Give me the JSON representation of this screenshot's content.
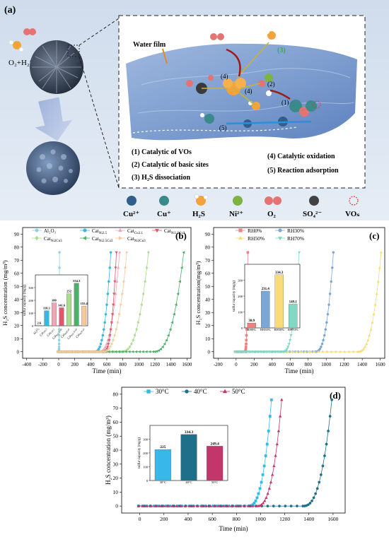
{
  "panel_a": {
    "label": "(a)",
    "water_film": "Water film",
    "gas_label": "O₂+H₂S",
    "step_numbers": [
      "(1)",
      "(2)",
      "(3)",
      "(4)",
      "(4)",
      "(5)"
    ],
    "steps": [
      "(1) Catalytic of VOs",
      "(2) Catalytic of basic sites",
      "(3) H₂S dissociation",
      "(4) Catalytic oxidation",
      "(5) Reaction adsorption"
    ],
    "legend": [
      {
        "label": "Cu²⁺",
        "color": "#2f5f8a"
      },
      {
        "label": "Cu⁺",
        "color": "#3a8a8a"
      },
      {
        "label": "H₂S",
        "color": "#f2a33a"
      },
      {
        "label": "Ni²⁺",
        "color": "#7cb342"
      },
      {
        "label": "O₂",
        "color": "#e57373"
      },
      {
        "label": "SO₄²⁻",
        "color": "#424242"
      },
      {
        "label": "VOₛ",
        "color": "#e53935"
      }
    ]
  },
  "chart_data": [
    {
      "type": "line",
      "panel": "(b)",
      "xlabel": "",
      "ylabel": "H₂S concentration (mg/m³)",
      "xlim": [
        -450,
        1650
      ],
      "ylim": [
        -5,
        95
      ],
      "xticks": [
        -400,
        -200,
        0,
        200,
        400,
        600,
        800,
        1000,
        1200,
        1400,
        1600
      ],
      "yticks": [
        0,
        10,
        20,
        30,
        40,
        50,
        60,
        70,
        80,
        90
      ],
      "legend": "top-left",
      "series": [
        {
          "name": "Al₂O₃",
          "color": "#8fd3e8",
          "marker": "circle",
          "breakthrough": 2,
          "end": 10
        },
        {
          "name": "Cat_Ni2.5",
          "color": "#38b8e0",
          "marker": "circle",
          "breakthrough": 450,
          "end": 650
        },
        {
          "name": "Cat_Cu3.1",
          "color": "#f2a6b8",
          "marker": "triangle",
          "breakthrough": 500,
          "end": 760
        },
        {
          "name": "Cat_Ni1.5Cu3",
          "color": "#e0566b",
          "marker": "triangle-down",
          "breakthrough": 560,
          "end": 720
        },
        {
          "name": "Cat_Ni2Cu3",
          "color": "#a9dc8f",
          "marker": "diamond",
          "breakthrough": 780,
          "end": 1120
        },
        {
          "name": "Cat_Ni2.5Cu3",
          "color": "#4cb06a",
          "marker": "triangle-left",
          "breakthrough": 1180,
          "end": 1560
        },
        {
          "name": "Cat_Ni3Cu3",
          "color": "#f5c99b",
          "marker": "triangle-right",
          "breakthrough": 550,
          "end": 850
        }
      ],
      "inset": {
        "type": "bar",
        "ylabel": "sulfur capacity (mg/g)",
        "categories": [
          "Al₂O₃",
          "Cat_Ni2.5",
          "Cat_Cu3.1",
          "Cat_Ni1.5Cu3",
          "Cat_Ni2Cu3",
          "Cat_Ni2.5Cu3",
          "Cat_Ni3Cu3"
        ],
        "values": [
          2.6,
          118.3,
          180,
          141.6,
          252,
          334.3,
          155.4
        ],
        "colors": [
          "#8fd3e8",
          "#38b8e0",
          "#f2a6b8",
          "#e0566b",
          "#a9dc8f",
          "#4cb06a",
          "#f5c99b"
        ],
        "ylim": [
          0,
          400
        ]
      }
    },
    {
      "type": "line",
      "panel": "(c)",
      "xlabel": "",
      "ylabel": "H₂S concentration(mg/m³)",
      "xlim": [
        -250,
        1650
      ],
      "ylim": [
        -5,
        95
      ],
      "xticks": [
        -200,
        0,
        200,
        400,
        600,
        800,
        1000,
        1200,
        1400,
        1600
      ],
      "yticks": [
        0,
        10,
        20,
        30,
        40,
        50,
        60,
        70,
        80,
        90
      ],
      "legend": "top-left",
      "series": [
        {
          "name": "RH0%",
          "color": "#f08080",
          "marker": "square",
          "breakthrough": 100,
          "end": 130
        },
        {
          "name": "RH30%",
          "color": "#7ba7d7",
          "marker": "circle",
          "breakthrough": 880,
          "end": 1080
        },
        {
          "name": "RH50%",
          "color": "#f7dc78",
          "marker": "triangle",
          "breakthrough": 1350,
          "end": 1610
        },
        {
          "name": "RH70%",
          "color": "#7fd9c3",
          "marker": "triangle-down",
          "breakthrough": 520,
          "end": 700
        }
      ],
      "inset": {
        "type": "bar",
        "ylabel": "sulfur capacity (mg/g)",
        "categories": [
          "RH0%",
          "RH30%",
          "RH50%",
          "RH70%"
        ],
        "values": [
          30.9,
          231.4,
          334.3,
          149.1
        ],
        "colors": [
          "#f08080",
          "#7ba7d7",
          "#f7dc78",
          "#7fd9c3"
        ],
        "ylim": [
          0,
          400
        ]
      }
    },
    {
      "type": "line",
      "panel": "(d)",
      "xlabel": "Time (min)",
      "ylabel": "H₂S concentration (mg/m³)",
      "xlim": [
        -150,
        1700
      ],
      "ylim": [
        -5,
        85
      ],
      "xticks": [
        0,
        200,
        400,
        600,
        800,
        1000,
        1200,
        1400,
        1600
      ],
      "yticks": [
        0,
        10,
        20,
        30,
        40,
        50,
        60,
        70,
        80
      ],
      "legend": "top-left",
      "series": [
        {
          "name": "30°C",
          "color": "#38b8e8",
          "marker": "square",
          "breakthrough": 900,
          "end": 1090
        },
        {
          "name": "40°C",
          "color": "#1f6f8b",
          "marker": "circle",
          "breakthrough": 1350,
          "end": 1590
        },
        {
          "name": "50°C",
          "color": "#c2366b",
          "marker": "triangle",
          "breakthrough": 970,
          "end": 1175
        }
      ],
      "inset": {
        "type": "bar",
        "ylabel": "sulfur capacity (mg/g)",
        "categories": [
          "30°C",
          "40°C",
          "50°C"
        ],
        "values": [
          225,
          334.3,
          249.4
        ],
        "colors": [
          "#38b8e8",
          "#1f6f8b",
          "#c2366b"
        ],
        "ylim": [
          0,
          400
        ]
      }
    }
  ],
  "time_label": "Time (min)"
}
